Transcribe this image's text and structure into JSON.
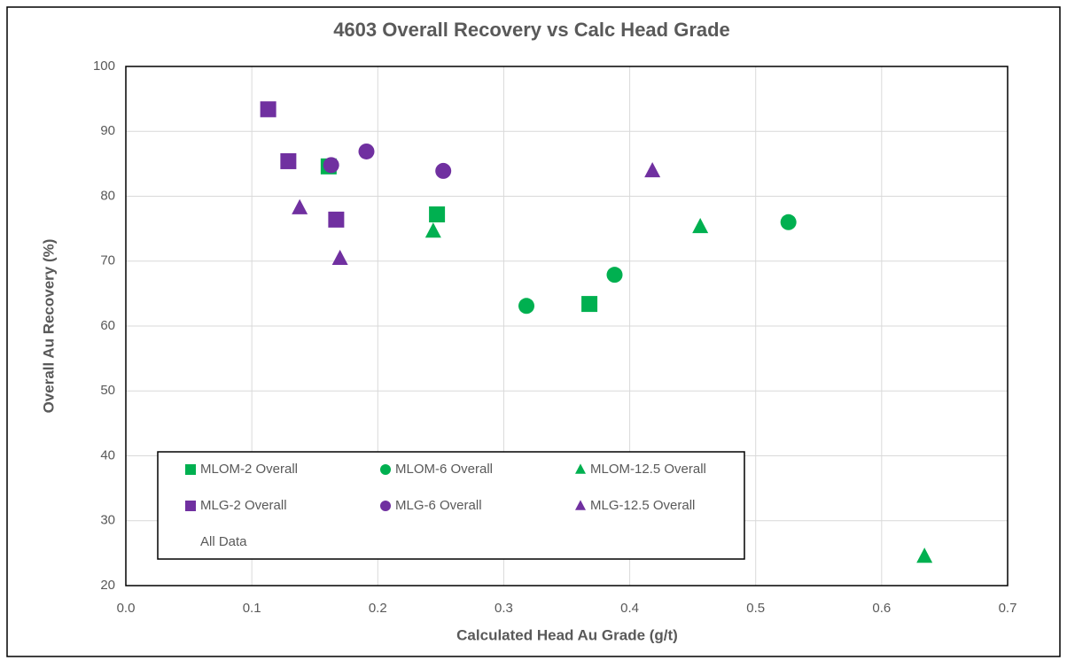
{
  "chart_data": {
    "type": "scatter",
    "title": "4603 Overall Recovery vs Calc Head Grade",
    "x_label": "Calculated Head Au Grade (g/t)",
    "y_label": "Overall Au Recovery (%)",
    "xlim": [
      0,
      0.7
    ],
    "xticks": [
      {
        "value": 0,
        "label": "0.0"
      },
      0.1,
      0.2,
      0.3,
      0.4,
      0.5,
      0.6,
      0.7
    ],
    "ylim": [
      20,
      100
    ],
    "yticks": [
      20,
      30,
      40,
      50,
      60,
      70,
      80,
      90,
      100
    ],
    "grid": true,
    "legend": "bottom-left",
    "series": [
      {
        "name": "MLOM-2 Overall",
        "color": "#00b050",
        "marker": "square",
        "x": [
          0.161,
          0.247,
          0.368
        ],
        "values": [
          84.6,
          77.2,
          63.4
        ]
      },
      {
        "name": "MLOM-6 Overall",
        "color": "#00b050",
        "marker": "circle",
        "x": [
          0.318,
          0.388,
          0.526
        ],
        "values": [
          63.1,
          67.9,
          76.0
        ]
      },
      {
        "name": "MLOM-12.5 Overall",
        "color": "#00b050",
        "marker": "triangle",
        "x": [
          0.244,
          0.456,
          0.634
        ],
        "values": [
          74.6,
          75.3,
          24.5
        ]
      },
      {
        "name": "MLG-2 Overall",
        "color": "#7030a0",
        "marker": "square",
        "x": [
          0.113,
          0.129,
          0.167
        ],
        "values": [
          93.4,
          85.4,
          76.4
        ]
      },
      {
        "name": "MLG-6 Overall",
        "color": "#7030a0",
        "marker": "circle",
        "x": [
          0.163,
          0.191,
          0.252
        ],
        "values": [
          84.8,
          86.9,
          83.9
        ]
      },
      {
        "name": "MLG-12.5 Overall",
        "color": "#7030a0",
        "marker": "triangle",
        "x": [
          0.138,
          0.17,
          0.418
        ],
        "values": [
          78.2,
          70.4,
          83.9
        ]
      },
      {
        "name": "All Data",
        "color": "#7f7f7f",
        "marker": "none",
        "x": [],
        "values": []
      }
    ]
  }
}
